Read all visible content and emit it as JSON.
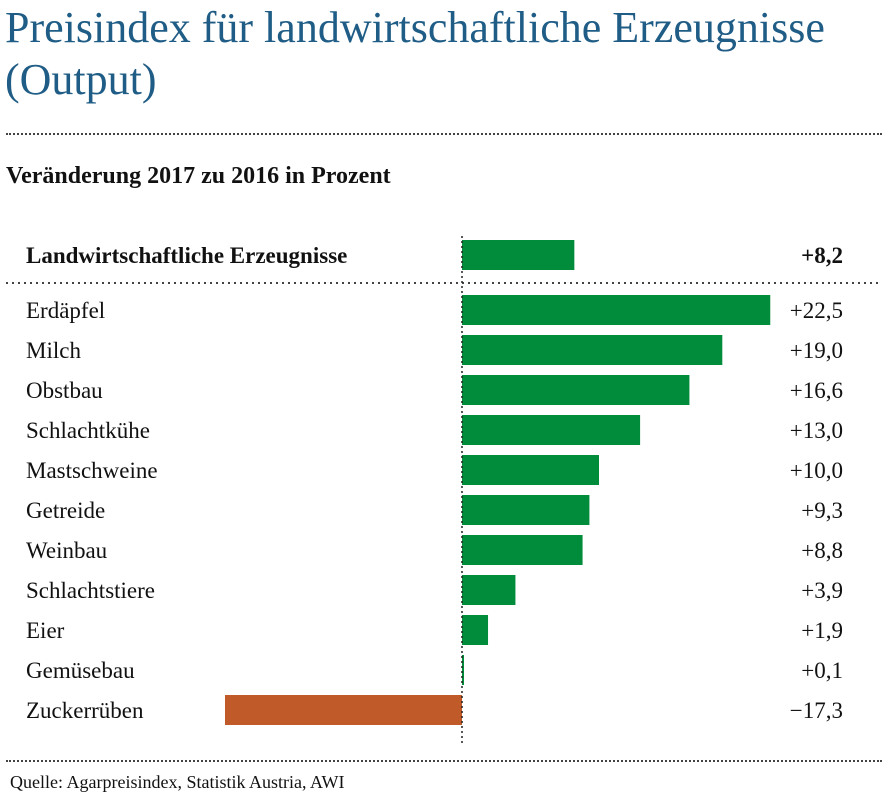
{
  "title": "Preisindex für landwirtschaftliche Erzeugnisse (Output)",
  "subtitle": "Veränderung 2017 zu 2016 in Prozent",
  "source": "Quelle: Agarpreisindex, Statistik Austria, AWI",
  "colors": {
    "positive": "#008c3a",
    "negative": "#c05a28",
    "title": "#1f5d86"
  },
  "chart_data": {
    "type": "bar",
    "orientation": "horizontal",
    "total": {
      "category": "Landwirtschaftliche Erzeugnisse",
      "value": 8.2,
      "label": "+8,2"
    },
    "categories": [
      "Erdäpfel",
      "Milch",
      "Obstbau",
      "Schlachtkühe",
      "Mastschweine",
      "Getreide",
      "Weinbau",
      "Schlachtstiere",
      "Eier",
      "Gemüsebau",
      "Zuckerrüben"
    ],
    "values": [
      22.5,
      19.0,
      16.6,
      13.0,
      10.0,
      9.3,
      8.8,
      3.9,
      1.9,
      0.1,
      -17.3
    ],
    "value_labels": [
      "+22,5",
      "+19,0",
      "+16,6",
      "+13,0",
      "+10,0",
      "+9,3",
      "+8,8",
      "+3,9",
      "+1,9",
      "+0,1",
      "−17,3"
    ],
    "xlim": [
      -17.3,
      22.5
    ],
    "grid": false,
    "legend": "none"
  }
}
